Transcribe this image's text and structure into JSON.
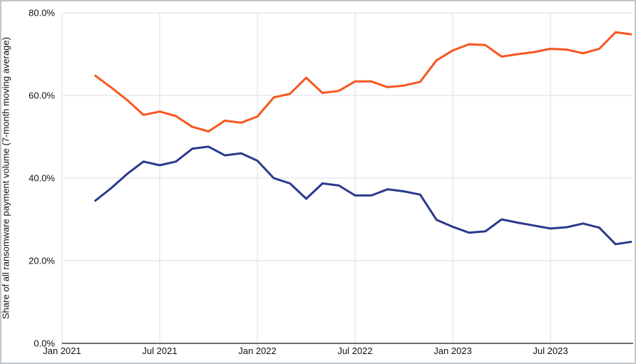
{
  "chart_data": {
    "type": "line",
    "title": "",
    "xlabel": "",
    "ylabel": "Share of all ransomware payment volume (7-month moving average)",
    "ylim": [
      0,
      80
    ],
    "grid": "on",
    "legend": "none",
    "y_ticks": [
      {
        "label": "0.0%",
        "value": 0
      },
      {
        "label": "20.0%",
        "value": 20
      },
      {
        "label": "40.0%",
        "value": 40
      },
      {
        "label": "60.0%",
        "value": 60
      },
      {
        "label": "80.0%",
        "value": 80
      }
    ],
    "x_ticks": [
      {
        "label": "Jan 2021",
        "month_index": 0
      },
      {
        "label": "Jul 2021",
        "month_index": 6
      },
      {
        "label": "Jan 2022",
        "month_index": 12
      },
      {
        "label": "Jul 2022",
        "month_index": 18
      },
      {
        "label": "Jan 2023",
        "month_index": 24
      },
      {
        "label": "Jul 2023",
        "month_index": 30
      }
    ],
    "x_offset_months": 2,
    "x": [
      "Mar 2021",
      "Apr 2021",
      "May 2021",
      "Jun 2021",
      "Jul 2021",
      "Aug 2021",
      "Sep 2021",
      "Oct 2021",
      "Nov 2021",
      "Dec 2021",
      "Jan 2022",
      "Feb 2022",
      "Mar 2022",
      "Apr 2022",
      "May 2022",
      "Jun 2022",
      "Jul 2022",
      "Aug 2022",
      "Sep 2022",
      "Oct 2022",
      "Nov 2022",
      "Dec 2022",
      "Jan 2023",
      "Feb 2023",
      "Mar 2023",
      "Apr 2023",
      "May 2023",
      "Jun 2023",
      "Jul 2023",
      "Aug 2023",
      "Sep 2023",
      "Oct 2023",
      "Nov 2023",
      "Dec 2023"
    ],
    "series": [
      {
        "name": "orange-line",
        "color": "#f8571f",
        "values": [
          64.9,
          62.0,
          58.9,
          55.3,
          56.1,
          55.0,
          52.4,
          51.3,
          53.9,
          53.4,
          54.9,
          59.5,
          60.4,
          64.3,
          60.6,
          61.1,
          63.4,
          63.4,
          62.0,
          62.4,
          63.3,
          68.5,
          70.9,
          72.4,
          72.2,
          69.4,
          70.0,
          70.5,
          71.3,
          71.1,
          70.2,
          71.3,
          75.3,
          74.8
        ]
      },
      {
        "name": "navy-line",
        "color": "#2b3a8c",
        "values": [
          34.4,
          37.5,
          41.0,
          44.0,
          43.1,
          44.0,
          47.1,
          47.6,
          45.5,
          46.0,
          44.2,
          40.0,
          38.7,
          35.0,
          38.7,
          38.2,
          35.8,
          35.8,
          37.3,
          36.8,
          36.0,
          29.9,
          28.2,
          26.8,
          27.1,
          30.0,
          29.2,
          28.5,
          27.8,
          28.1,
          29.0,
          28.0,
          24.0,
          24.6
        ]
      }
    ],
    "colors": {
      "gridline": "#dcdcdc",
      "axis_line": "#6e6e6e",
      "tick_text": "#111111",
      "background": "#ffffff",
      "frame_border": "#c2c6c9"
    }
  }
}
